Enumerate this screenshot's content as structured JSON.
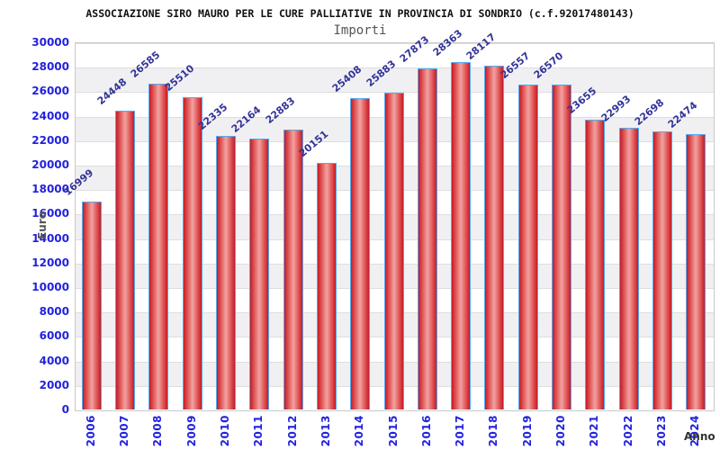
{
  "title": "ASSOCIAZIONE SIRO MAURO PER LE CURE PALLIATIVE IN PROVINCIA DI SONDRIO (c.f.92017480143)",
  "subtitle": "Importi",
  "chart_data": {
    "type": "bar",
    "title": "Importi",
    "categories": [
      "2006",
      "2007",
      "2008",
      "2009",
      "2010",
      "2011",
      "2012",
      "2013",
      "2014",
      "2015",
      "2016",
      "2017",
      "2018",
      "2019",
      "2020",
      "2021",
      "2022",
      "2023",
      "2024"
    ],
    "values": [
      16999,
      24448,
      26585,
      25510,
      22335,
      22164,
      22883,
      20151,
      25408,
      25883,
      27873,
      28363,
      28117,
      26557,
      26570,
      23655,
      22993,
      22698,
      22474
    ],
    "xlabel": "Anno",
    "ylabel": "Euro",
    "ylim": [
      0,
      30000
    ],
    "y_ticks": [
      0,
      2000,
      4000,
      6000,
      8000,
      10000,
      12000,
      14000,
      16000,
      18000,
      20000,
      22000,
      24000,
      26000,
      28000,
      30000
    ],
    "legend_position": "none",
    "grid": "horizontal alternating bands"
  },
  "colors": {
    "bar_edge_red": "#c31c2a",
    "bar_center_pink": "#f2a2a2",
    "bar_border_blue": "#56a9ef",
    "axis_tick_blue": "#2222dd",
    "value_label_navy": "#333399",
    "band_gray": "#f0f0f2",
    "gridline_gray": "#dedede",
    "plot_border_gray": "#c9c9c9",
    "title_black": "#111111",
    "subtitle_gray": "#555555"
  }
}
